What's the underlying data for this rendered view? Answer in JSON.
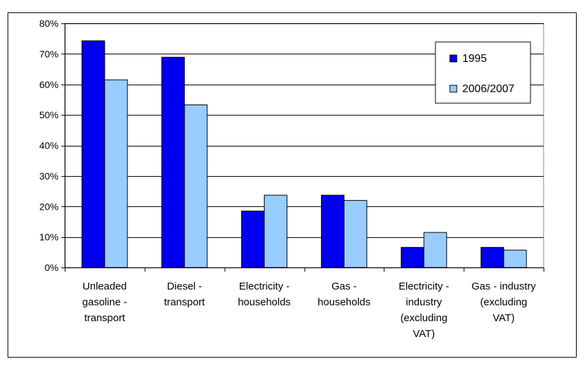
{
  "chart_data": {
    "type": "bar",
    "title": "",
    "xlabel": "",
    "ylabel": "",
    "ylim": [
      0,
      0.8
    ],
    "y_ticks": [
      {
        "value": 0.0,
        "label": "0%"
      },
      {
        "value": 0.1,
        "label": "10%"
      },
      {
        "value": 0.2,
        "label": "20%"
      },
      {
        "value": 0.3,
        "label": "30%"
      },
      {
        "value": 0.4,
        "label": "40%"
      },
      {
        "value": 0.5,
        "label": "50%"
      },
      {
        "value": 0.6,
        "label": "60%"
      },
      {
        "value": 0.7,
        "label": "70%"
      },
      {
        "value": 0.8,
        "label": "80%"
      }
    ],
    "grid": true,
    "legend_position": "top-right",
    "categories": [
      [
        "Unleaded",
        "gasoline -",
        "transport"
      ],
      [
        "Diesel -",
        "transport"
      ],
      [
        "Electricity -",
        "households"
      ],
      [
        "Gas -",
        "households"
      ],
      [
        "Electricity -",
        "industry",
        "(excluding",
        "VAT)"
      ],
      [
        "Gas - industry",
        "(excluding",
        "VAT)"
      ]
    ],
    "series": [
      {
        "name": "1995",
        "color": "#0000ee",
        "values": [
          0.743,
          0.689,
          0.185,
          0.237,
          0.066,
          0.066
        ]
      },
      {
        "name": "2006/2007",
        "color": "#99ccff",
        "values": [
          0.615,
          0.533,
          0.237,
          0.22,
          0.115,
          0.057
        ]
      }
    ]
  }
}
